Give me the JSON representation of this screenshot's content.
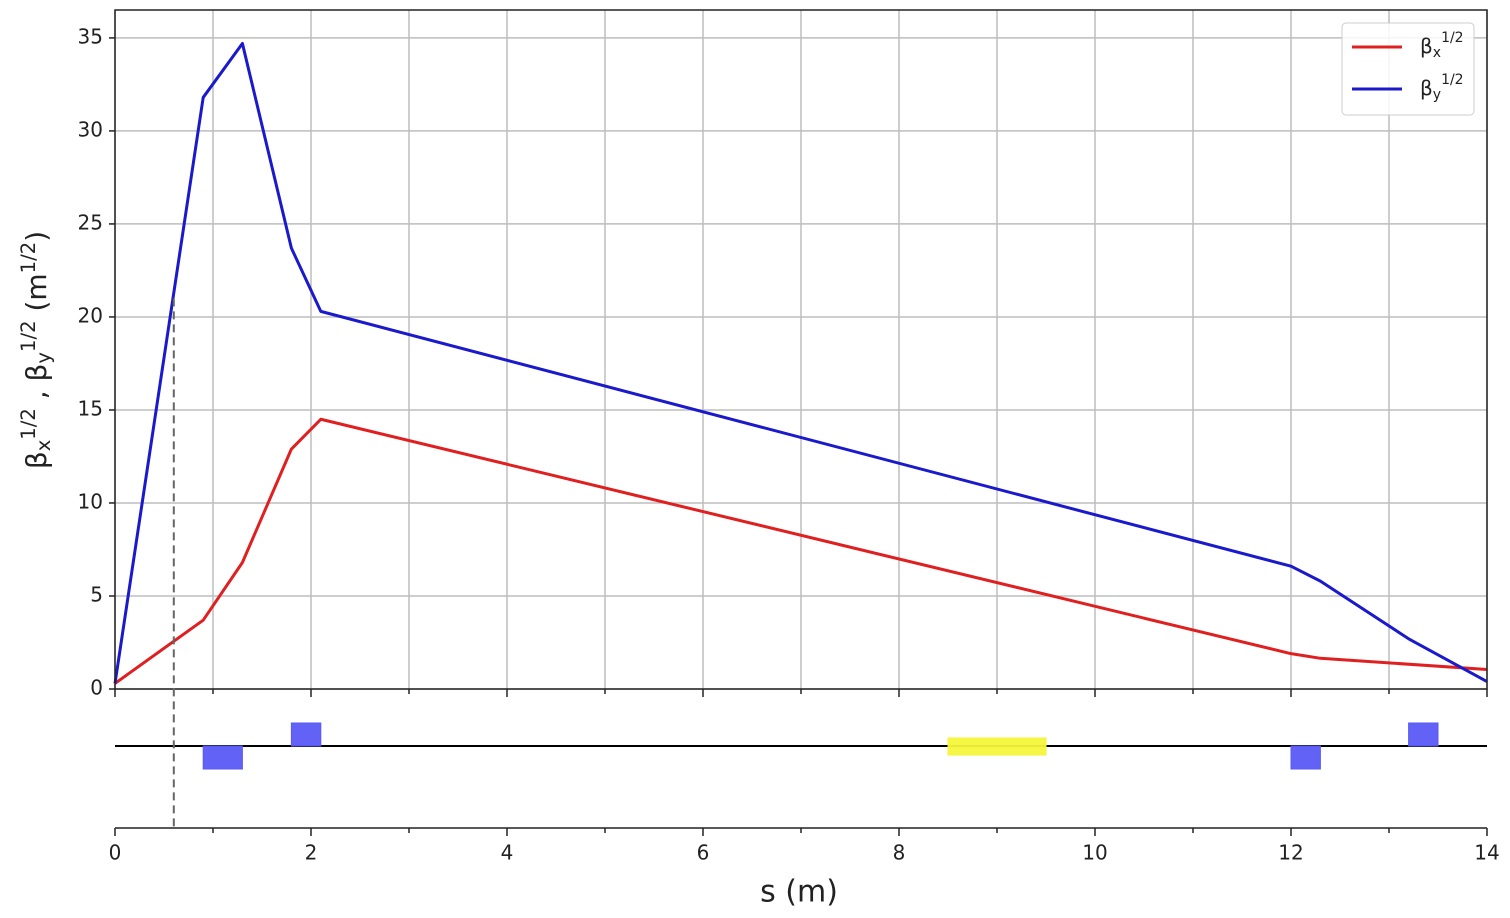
{
  "chart_data": {
    "type": "line",
    "xlabel": "s (m)",
    "ylabel": "β_x^{1/2} ,  β_y^{1/2} (m^{1/2})",
    "xlim": [
      0,
      14
    ],
    "ylim": [
      0,
      36.5
    ],
    "xticks": [
      0,
      2,
      4,
      6,
      8,
      10,
      12,
      14
    ],
    "xminorticks": [
      1,
      3,
      5,
      7,
      9,
      11,
      13
    ],
    "yticks": [
      0,
      5,
      10,
      15,
      20,
      25,
      30,
      35
    ],
    "grid": true,
    "legend": "upper right",
    "series": [
      {
        "name": "β_x^{1/2}",
        "color": "#e02020",
        "x": [
          0,
          0.9,
          1.3,
          1.8,
          2.1,
          12.0,
          12.3,
          14
        ],
        "values": [
          0.3,
          3.7,
          6.8,
          12.9,
          14.5,
          1.9,
          1.65,
          1.05
        ]
      },
      {
        "name": "β_y^{1/2}",
        "color": "#1a1acc",
        "x": [
          0,
          0.9,
          1.3,
          1.8,
          2.1,
          12.0,
          12.3,
          13.2,
          14
        ],
        "values": [
          0.3,
          31.8,
          34.7,
          23.7,
          20.3,
          6.6,
          5.8,
          2.7,
          0.4
        ]
      }
    ],
    "marker_line": {
      "s": 0.6,
      "top": 21
    },
    "elements": [
      {
        "start": 0.9,
        "end": 1.3,
        "side": "below",
        "color": "#5a5af5"
      },
      {
        "start": 1.8,
        "end": 2.1,
        "side": "above",
        "color": "#5a5af5"
      },
      {
        "start": 8.5,
        "end": 9.5,
        "side": "center",
        "color": "#f5f53a"
      },
      {
        "start": 12.0,
        "end": 12.3,
        "side": "below",
        "color": "#5a5af5"
      },
      {
        "start": 13.2,
        "end": 13.5,
        "side": "above",
        "color": "#5a5af5"
      }
    ]
  }
}
